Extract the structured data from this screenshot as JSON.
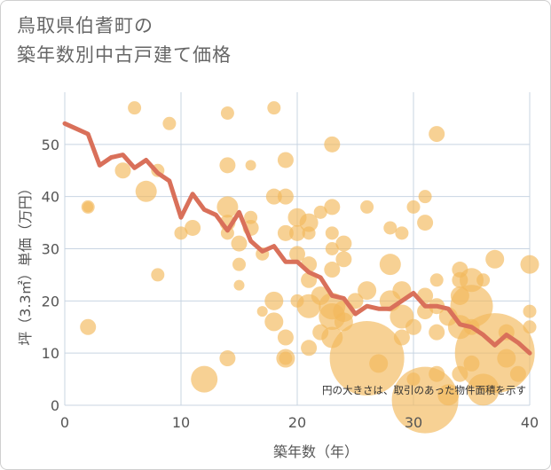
{
  "title_line1": "鳥取県伯耆町の",
  "title_line2": "築年数別中古戸建て価格",
  "chart_data": {
    "type": "scatter",
    "xlabel": "築年数（年）",
    "ylabel": "坪（3.3㎡）単価（万円）",
    "xlim": [
      0,
      40
    ],
    "ylim": [
      0,
      60
    ],
    "x_ticks": [
      "0",
      "10",
      "20",
      "30",
      "40"
    ],
    "x_tick_values": [
      0,
      10,
      20,
      30,
      40
    ],
    "y_ticks": [
      "0",
      "10",
      "20",
      "30",
      "40",
      "50"
    ],
    "y_tick_values": [
      0,
      10,
      20,
      30,
      40,
      50
    ],
    "grid": true,
    "note": "円の大きさは、取引のあった物件面積を示す",
    "colors": {
      "bubble": "#f2b85a",
      "line": "#d9705a",
      "grid": "#c8d4e2",
      "plot_bg": "#ffffff"
    },
    "series": [
      {
        "kind": "bubble",
        "points": [
          {
            "x": 2,
            "y": 38,
            "s": 5
          },
          {
            "x": 2,
            "y": 38,
            "s": 4
          },
          {
            "x": 2,
            "y": 15,
            "s": 6
          },
          {
            "x": 5,
            "y": 45,
            "s": 6
          },
          {
            "x": 6,
            "y": 57,
            "s": 5
          },
          {
            "x": 7,
            "y": 41,
            "s": 8
          },
          {
            "x": 8,
            "y": 45,
            "s": 5
          },
          {
            "x": 8,
            "y": 25,
            "s": 5
          },
          {
            "x": 9,
            "y": 54,
            "s": 5
          },
          {
            "x": 10,
            "y": 33,
            "s": 5
          },
          {
            "x": 11,
            "y": 34,
            "s": 6
          },
          {
            "x": 12,
            "y": 5,
            "s": 10
          },
          {
            "x": 14,
            "y": 56,
            "s": 5
          },
          {
            "x": 14,
            "y": 46,
            "s": 6
          },
          {
            "x": 14,
            "y": 38,
            "s": 8
          },
          {
            "x": 14,
            "y": 35,
            "s": 6
          },
          {
            "x": 14,
            "y": 33,
            "s": 5
          },
          {
            "x": 14,
            "y": 9,
            "s": 6
          },
          {
            "x": 15,
            "y": 31,
            "s": 6
          },
          {
            "x": 15,
            "y": 27,
            "s": 5
          },
          {
            "x": 15,
            "y": 23,
            "s": 4
          },
          {
            "x": 16,
            "y": 46,
            "s": 4
          },
          {
            "x": 16,
            "y": 36,
            "s": 5
          },
          {
            "x": 16,
            "y": 34,
            "s": 6
          },
          {
            "x": 17,
            "y": 29,
            "s": 5
          },
          {
            "x": 17,
            "y": 18,
            "s": 4
          },
          {
            "x": 18,
            "y": 57,
            "s": 5
          },
          {
            "x": 18,
            "y": 40,
            "s": 6
          },
          {
            "x": 18,
            "y": 20,
            "s": 7
          },
          {
            "x": 18,
            "y": 16,
            "s": 7
          },
          {
            "x": 19,
            "y": 47,
            "s": 6
          },
          {
            "x": 19,
            "y": 40,
            "s": 6
          },
          {
            "x": 19,
            "y": 33,
            "s": 6
          },
          {
            "x": 19,
            "y": 13,
            "s": 6
          },
          {
            "x": 19,
            "y": 9,
            "s": 7
          },
          {
            "x": 19,
            "y": 9,
            "s": 5
          },
          {
            "x": 20,
            "y": 36,
            "s": 7
          },
          {
            "x": 20,
            "y": 33,
            "s": 6
          },
          {
            "x": 20,
            "y": 29,
            "s": 6
          },
          {
            "x": 20,
            "y": 20,
            "s": 5
          },
          {
            "x": 21,
            "y": 35,
            "s": 7
          },
          {
            "x": 21,
            "y": 33,
            "s": 5
          },
          {
            "x": 21,
            "y": 27,
            "s": 6
          },
          {
            "x": 21,
            "y": 24,
            "s": 6
          },
          {
            "x": 21,
            "y": 19,
            "s": 9
          },
          {
            "x": 21,
            "y": 11,
            "s": 6
          },
          {
            "x": 22,
            "y": 37,
            "s": 5
          },
          {
            "x": 22,
            "y": 21,
            "s": 7
          },
          {
            "x": 22,
            "y": 14,
            "s": 6
          },
          {
            "x": 23,
            "y": 50,
            "s": 6
          },
          {
            "x": 23,
            "y": 38,
            "s": 6
          },
          {
            "x": 23,
            "y": 33,
            "s": 5
          },
          {
            "x": 23,
            "y": 30,
            "s": 5
          },
          {
            "x": 23,
            "y": 26,
            "s": 6
          },
          {
            "x": 23,
            "y": 19,
            "s": 10
          },
          {
            "x": 23,
            "y": 17,
            "s": 10
          },
          {
            "x": 23,
            "y": 13,
            "s": 8
          },
          {
            "x": 24,
            "y": 31,
            "s": 6
          },
          {
            "x": 24,
            "y": 28,
            "s": 6
          },
          {
            "x": 24,
            "y": 18,
            "s": 8
          },
          {
            "x": 24,
            "y": 16,
            "s": 7
          },
          {
            "x": 25,
            "y": 20,
            "s": 6
          },
          {
            "x": 26,
            "y": 38,
            "s": 5
          },
          {
            "x": 26,
            "y": 22,
            "s": 7
          },
          {
            "x": 26,
            "y": 9,
            "s": 28
          },
          {
            "x": 27,
            "y": 8,
            "s": 7
          },
          {
            "x": 28,
            "y": 34,
            "s": 5
          },
          {
            "x": 28,
            "y": 27,
            "s": 8
          },
          {
            "x": 28,
            "y": 20,
            "s": 8
          },
          {
            "x": 29,
            "y": 33,
            "s": 5
          },
          {
            "x": 29,
            "y": 22,
            "s": 7
          },
          {
            "x": 29,
            "y": 17,
            "s": 9
          },
          {
            "x": 29,
            "y": 13,
            "s": 6
          },
          {
            "x": 30,
            "y": 38,
            "s": 5
          },
          {
            "x": 30,
            "y": 15,
            "s": 6
          },
          {
            "x": 30,
            "y": 5,
            "s": 5
          },
          {
            "x": 31,
            "y": 40,
            "s": 5
          },
          {
            "x": 31,
            "y": 35,
            "s": 6
          },
          {
            "x": 31,
            "y": 21,
            "s": 6
          },
          {
            "x": 31,
            "y": 18,
            "s": 6
          },
          {
            "x": 31,
            "y": 1,
            "s": 25
          },
          {
            "x": 32,
            "y": 52,
            "s": 6
          },
          {
            "x": 32,
            "y": 24,
            "s": 5
          },
          {
            "x": 32,
            "y": 19,
            "s": 6
          },
          {
            "x": 32,
            "y": 14,
            "s": 6
          },
          {
            "x": 32,
            "y": 6,
            "s": 6
          },
          {
            "x": 33,
            "y": 17,
            "s": 7
          },
          {
            "x": 33,
            "y": 2,
            "s": 8
          },
          {
            "x": 34,
            "y": 26,
            "s": 6
          },
          {
            "x": 34,
            "y": 24,
            "s": 6
          },
          {
            "x": 34,
            "y": 21,
            "s": 7
          },
          {
            "x": 34,
            "y": 15,
            "s": 9
          },
          {
            "x": 34,
            "y": 6,
            "s": 6
          },
          {
            "x": 35,
            "y": 24,
            "s": 9
          },
          {
            "x": 35,
            "y": 19,
            "s": 16
          },
          {
            "x": 35,
            "y": 15,
            "s": 6
          },
          {
            "x": 35,
            "y": 8,
            "s": 6
          },
          {
            "x": 36,
            "y": 3,
            "s": 12
          },
          {
            "x": 36,
            "y": 24,
            "s": 5
          },
          {
            "x": 37,
            "y": 28,
            "s": 7
          },
          {
            "x": 37,
            "y": 10,
            "s": 30
          },
          {
            "x": 38,
            "y": 9,
            "s": 7
          },
          {
            "x": 38,
            "y": 14,
            "s": 6
          },
          {
            "x": 39,
            "y": 6,
            "s": 6
          },
          {
            "x": 40,
            "y": 27,
            "s": 7
          },
          {
            "x": 40,
            "y": 18,
            "s": 5
          },
          {
            "x": 40,
            "y": 15,
            "s": 5
          }
        ]
      },
      {
        "kind": "line",
        "points": [
          {
            "x": 0,
            "y": 54
          },
          {
            "x": 1,
            "y": 53
          },
          {
            "x": 2,
            "y": 52
          },
          {
            "x": 3,
            "y": 46
          },
          {
            "x": 4,
            "y": 47.5
          },
          {
            "x": 5,
            "y": 48
          },
          {
            "x": 6,
            "y": 45.5
          },
          {
            "x": 7,
            "y": 47
          },
          {
            "x": 8,
            "y": 44.5
          },
          {
            "x": 9,
            "y": 43
          },
          {
            "x": 10,
            "y": 36
          },
          {
            "x": 11,
            "y": 40.5
          },
          {
            "x": 12,
            "y": 37.5
          },
          {
            "x": 13,
            "y": 36.5
          },
          {
            "x": 14,
            "y": 33.5
          },
          {
            "x": 15,
            "y": 37
          },
          {
            "x": 16,
            "y": 31.5
          },
          {
            "x": 17,
            "y": 29.5
          },
          {
            "x": 18,
            "y": 30.5
          },
          {
            "x": 19,
            "y": 27.5
          },
          {
            "x": 20,
            "y": 27.5
          },
          {
            "x": 21,
            "y": 25.5
          },
          {
            "x": 22,
            "y": 24.5
          },
          {
            "x": 23,
            "y": 21
          },
          {
            "x": 24,
            "y": 20.5
          },
          {
            "x": 25,
            "y": 17.5
          },
          {
            "x": 26,
            "y": 19
          },
          {
            "x": 27,
            "y": 18.5
          },
          {
            "x": 28,
            "y": 18.5
          },
          {
            "x": 29,
            "y": 20
          },
          {
            "x": 30,
            "y": 21.5
          },
          {
            "x": 31,
            "y": 19
          },
          {
            "x": 32,
            "y": 19
          },
          {
            "x": 33,
            "y": 18.5
          },
          {
            "x": 34,
            "y": 15.5
          },
          {
            "x": 35,
            "y": 15
          },
          {
            "x": 36,
            "y": 13.5
          },
          {
            "x": 37,
            "y": 11.5
          },
          {
            "x": 38,
            "y": 13.5
          },
          {
            "x": 39,
            "y": 12
          },
          {
            "x": 40,
            "y": 10
          }
        ]
      }
    ]
  }
}
